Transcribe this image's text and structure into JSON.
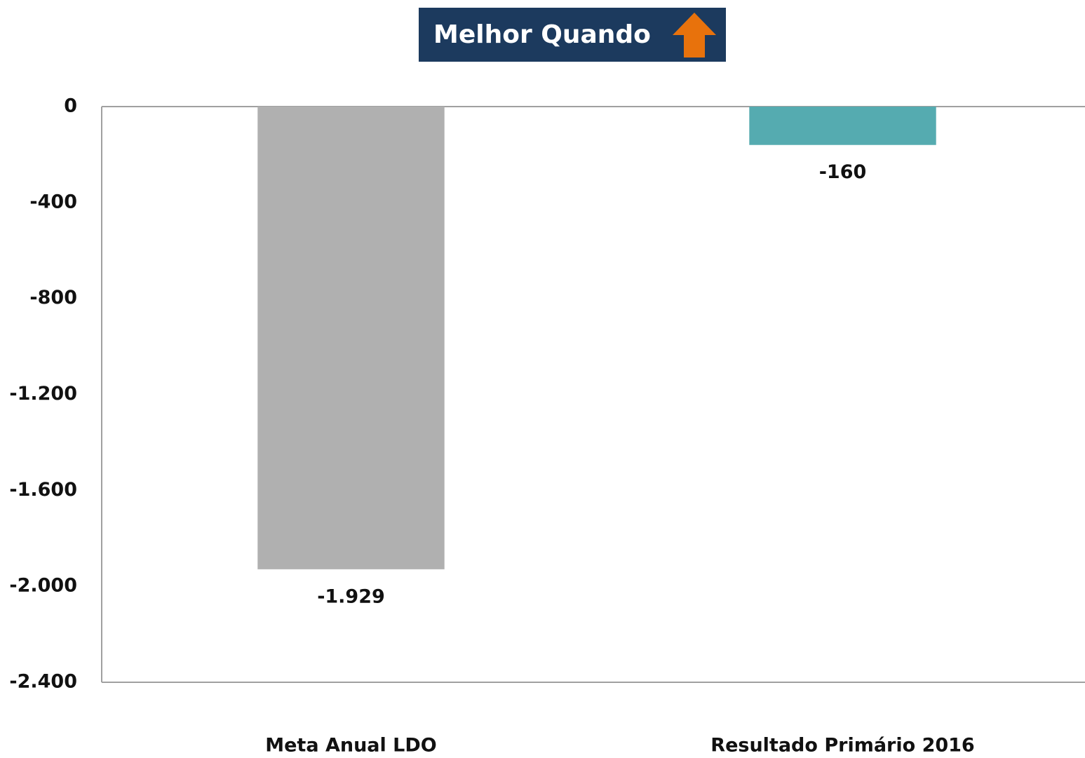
{
  "chart_data": {
    "type": "bar",
    "title": "Melhor Quando",
    "categories": [
      "Meta Anual LDO",
      "Resultado Primário 2016"
    ],
    "values": [
      -1929,
      -160
    ],
    "value_labels": [
      "-1.929",
      "-160"
    ],
    "colors": [
      "#b0b0b0",
      "#55abb0"
    ],
    "ylim": [
      -2400,
      0
    ],
    "yticks": [
      0,
      -400,
      -800,
      {
        "value": -1200,
        "label": "-1.200"
      },
      {
        "value": -1600,
        "label": "-1.600"
      },
      {
        "value": -2000,
        "label": "-2.000"
      },
      {
        "value": -2400,
        "label": "-2.400"
      }
    ],
    "grid": false
  }
}
